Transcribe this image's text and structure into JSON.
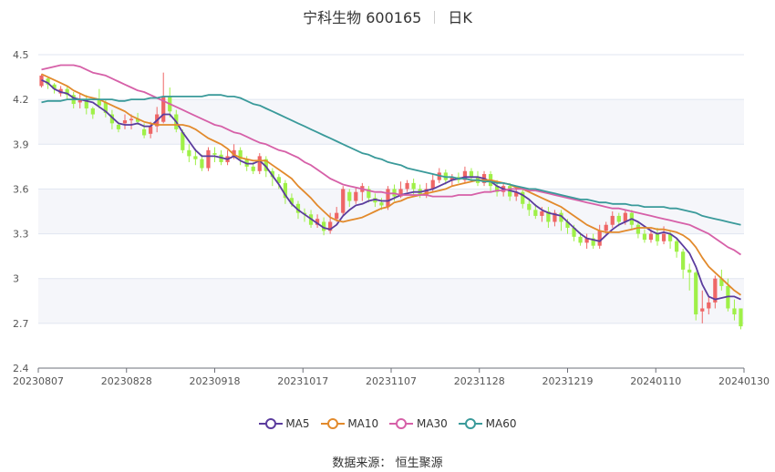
{
  "title": {
    "name": "宁科生物 600165",
    "period": "日K"
  },
  "source": {
    "label": "数据来源：",
    "value": "恒生聚源"
  },
  "chart_data": {
    "type": "candlestick",
    "y_ticks": [
      "4.5",
      "4.2",
      "3.9",
      "3.6",
      "3.3",
      "3",
      "2.7",
      "2.4"
    ],
    "y_values": [
      4.5,
      4.2,
      3.9,
      3.6,
      3.3,
      3.0,
      2.7,
      2.4
    ],
    "ylim": [
      2.4,
      4.5
    ],
    "x_ticks": [
      "20230807",
      "20230828",
      "20230918",
      "20231017",
      "20231107",
      "20231128",
      "20231219",
      "20240110",
      "20240130"
    ],
    "up_color": "#ee6666",
    "down_color": "#9ff048",
    "grid": true,
    "legend_position": "bottom",
    "series": [
      {
        "name": "MA5",
        "color": "#5b3c9e",
        "values": [
          4.33,
          4.31,
          4.27,
          4.25,
          4.24,
          4.21,
          4.2,
          4.19,
          4.18,
          4.15,
          4.12,
          4.08,
          4.04,
          4.03,
          4.03,
          4.04,
          4.02,
          4.02,
          4.06,
          4.1,
          4.1,
          4.05,
          3.98,
          3.92,
          3.86,
          3.82,
          3.82,
          3.82,
          3.81,
          3.8,
          3.82,
          3.79,
          3.77,
          3.77,
          3.79,
          3.75,
          3.69,
          3.63,
          3.56,
          3.5,
          3.46,
          3.43,
          3.4,
          3.37,
          3.34,
          3.33,
          3.36,
          3.42,
          3.46,
          3.49,
          3.5,
          3.52,
          3.53,
          3.52,
          3.52,
          3.54,
          3.56,
          3.57,
          3.58,
          3.58,
          3.59,
          3.6,
          3.62,
          3.64,
          3.66,
          3.67,
          3.68,
          3.68,
          3.68,
          3.67,
          3.65,
          3.62,
          3.6,
          3.59,
          3.58,
          3.56,
          3.53,
          3.49,
          3.46,
          3.44,
          3.43,
          3.42,
          3.38,
          3.34,
          3.3,
          3.27,
          3.26,
          3.25,
          3.29,
          3.33,
          3.36,
          3.38,
          3.4,
          3.38,
          3.35,
          3.32,
          3.3,
          3.31,
          3.3,
          3.27,
          3.22,
          3.17,
          3.08,
          2.96,
          2.88,
          2.86,
          2.87,
          2.88,
          2.88,
          2.86
        ]
      },
      {
        "name": "MA10",
        "color": "#e28a2c",
        "values": [
          4.37,
          4.35,
          4.33,
          4.31,
          4.29,
          4.26,
          4.24,
          4.22,
          4.21,
          4.2,
          4.18,
          4.16,
          4.14,
          4.12,
          4.09,
          4.07,
          4.05,
          4.04,
          4.03,
          4.03,
          4.03,
          4.03,
          4.03,
          4.02,
          4.0,
          3.97,
          3.94,
          3.92,
          3.9,
          3.87,
          3.83,
          3.81,
          3.8,
          3.79,
          3.79,
          3.79,
          3.76,
          3.73,
          3.7,
          3.67,
          3.62,
          3.58,
          3.54,
          3.49,
          3.45,
          3.41,
          3.39,
          3.38,
          3.39,
          3.4,
          3.41,
          3.43,
          3.45,
          3.47,
          3.48,
          3.51,
          3.52,
          3.54,
          3.55,
          3.56,
          3.57,
          3.58,
          3.59,
          3.6,
          3.62,
          3.63,
          3.64,
          3.65,
          3.66,
          3.66,
          3.66,
          3.65,
          3.64,
          3.63,
          3.61,
          3.6,
          3.58,
          3.56,
          3.54,
          3.52,
          3.5,
          3.48,
          3.45,
          3.42,
          3.39,
          3.36,
          3.34,
          3.32,
          3.31,
          3.31,
          3.31,
          3.32,
          3.33,
          3.34,
          3.34,
          3.34,
          3.33,
          3.33,
          3.32,
          3.31,
          3.29,
          3.26,
          3.21,
          3.14,
          3.08,
          3.04,
          3.0,
          2.96,
          2.92,
          2.89
        ]
      },
      {
        "name": "MA30",
        "color": "#d660a8",
        "values": [
          4.4,
          4.41,
          4.42,
          4.43,
          4.43,
          4.43,
          4.42,
          4.4,
          4.38,
          4.37,
          4.36,
          4.34,
          4.32,
          4.3,
          4.28,
          4.26,
          4.25,
          4.23,
          4.21,
          4.19,
          4.17,
          4.15,
          4.13,
          4.11,
          4.09,
          4.07,
          4.05,
          4.03,
          4.02,
          4.0,
          3.98,
          3.97,
          3.95,
          3.93,
          3.91,
          3.9,
          3.88,
          3.86,
          3.85,
          3.83,
          3.81,
          3.78,
          3.76,
          3.73,
          3.7,
          3.67,
          3.65,
          3.63,
          3.62,
          3.61,
          3.6,
          3.59,
          3.58,
          3.58,
          3.57,
          3.57,
          3.56,
          3.56,
          3.56,
          3.56,
          3.56,
          3.55,
          3.55,
          3.55,
          3.55,
          3.56,
          3.56,
          3.56,
          3.57,
          3.58,
          3.58,
          3.59,
          3.59,
          3.6,
          3.6,
          3.6,
          3.59,
          3.59,
          3.58,
          3.57,
          3.56,
          3.55,
          3.54,
          3.53,
          3.52,
          3.51,
          3.5,
          3.49,
          3.48,
          3.47,
          3.47,
          3.46,
          3.45,
          3.44,
          3.43,
          3.42,
          3.41,
          3.4,
          3.39,
          3.38,
          3.37,
          3.36,
          3.34,
          3.32,
          3.3,
          3.27,
          3.24,
          3.21,
          3.19,
          3.16
        ]
      },
      {
        "name": "MA60",
        "color": "#3a9a9a",
        "values": [
          4.18,
          4.19,
          4.19,
          4.19,
          4.2,
          4.2,
          4.2,
          4.2,
          4.2,
          4.2,
          4.2,
          4.2,
          4.19,
          4.19,
          4.2,
          4.2,
          4.2,
          4.21,
          4.21,
          4.22,
          4.22,
          4.22,
          4.22,
          4.22,
          4.22,
          4.22,
          4.23,
          4.23,
          4.23,
          4.22,
          4.22,
          4.21,
          4.19,
          4.17,
          4.16,
          4.14,
          4.12,
          4.1,
          4.08,
          4.06,
          4.04,
          4.02,
          4.0,
          3.98,
          3.96,
          3.94,
          3.92,
          3.9,
          3.88,
          3.86,
          3.84,
          3.83,
          3.81,
          3.8,
          3.78,
          3.77,
          3.76,
          3.74,
          3.73,
          3.72,
          3.71,
          3.7,
          3.69,
          3.68,
          3.68,
          3.67,
          3.67,
          3.66,
          3.66,
          3.65,
          3.65,
          3.64,
          3.64,
          3.63,
          3.62,
          3.61,
          3.6,
          3.6,
          3.59,
          3.58,
          3.57,
          3.56,
          3.55,
          3.54,
          3.53,
          3.53,
          3.52,
          3.51,
          3.51,
          3.5,
          3.5,
          3.5,
          3.49,
          3.49,
          3.48,
          3.48,
          3.48,
          3.48,
          3.47,
          3.47,
          3.46,
          3.45,
          3.44,
          3.42,
          3.41,
          3.4,
          3.39,
          3.38,
          3.37,
          3.36
        ]
      }
    ],
    "candles": [
      [
        4.29,
        4.36,
        4.37,
        4.28
      ],
      [
        4.34,
        4.3,
        4.35,
        4.27
      ],
      [
        4.3,
        4.27,
        4.31,
        4.24
      ],
      [
        4.24,
        4.27,
        4.29,
        4.22
      ],
      [
        4.27,
        4.23,
        4.29,
        4.2
      ],
      [
        4.23,
        4.17,
        4.25,
        4.14
      ],
      [
        4.18,
        4.2,
        4.24,
        4.14
      ],
      [
        4.2,
        4.14,
        4.23,
        4.1
      ],
      [
        4.14,
        4.1,
        4.15,
        4.07
      ],
      [
        4.2,
        4.16,
        4.27,
        4.14
      ],
      [
        4.18,
        4.11,
        4.2,
        4.08
      ],
      [
        4.1,
        4.04,
        4.13,
        4.0
      ],
      [
        4.03,
        4.0,
        4.05,
        3.98
      ],
      [
        4.04,
        4.06,
        4.1,
        4.0
      ],
      [
        4.06,
        4.07,
        4.1,
        4.0
      ],
      [
        4.07,
        4.05,
        4.11,
        4.03
      ],
      [
        4.0,
        3.96,
        4.04,
        3.94
      ],
      [
        3.97,
        4.02,
        4.05,
        3.94
      ],
      [
        4.02,
        4.1,
        4.15,
        3.98
      ],
      [
        4.05,
        4.22,
        4.38,
        4.04
      ],
      [
        4.22,
        4.12,
        4.28,
        4.08
      ],
      [
        4.1,
        4.0,
        4.13,
        3.98
      ],
      [
        3.98,
        3.86,
        4.0,
        3.84
      ],
      [
        3.86,
        3.82,
        3.9,
        3.78
      ],
      [
        3.82,
        3.8,
        3.87,
        3.76
      ],
      [
        3.8,
        3.74,
        3.83,
        3.72
      ],
      [
        3.74,
        3.86,
        3.88,
        3.72
      ],
      [
        3.84,
        3.83,
        3.88,
        3.78
      ],
      [
        3.83,
        3.78,
        3.86,
        3.76
      ],
      [
        3.78,
        3.82,
        3.86,
        3.76
      ],
      [
        3.82,
        3.86,
        3.9,
        3.8
      ],
      [
        3.86,
        3.8,
        3.88,
        3.76
      ],
      [
        3.8,
        3.75,
        3.82,
        3.72
      ],
      [
        3.75,
        3.72,
        3.78,
        3.7
      ],
      [
        3.72,
        3.82,
        3.84,
        3.7
      ],
      [
        3.8,
        3.72,
        3.82,
        3.68
      ],
      [
        3.72,
        3.68,
        3.74,
        3.62
      ],
      [
        3.68,
        3.64,
        3.7,
        3.6
      ],
      [
        3.64,
        3.54,
        3.66,
        3.5
      ],
      [
        3.54,
        3.5,
        3.57,
        3.48
      ],
      [
        3.5,
        3.44,
        3.52,
        3.4
      ],
      [
        3.44,
        3.43,
        3.47,
        3.38
      ],
      [
        3.43,
        3.36,
        3.46,
        3.34
      ],
      [
        3.36,
        3.4,
        3.43,
        3.34
      ],
      [
        3.38,
        3.32,
        3.41,
        3.29
      ],
      [
        3.32,
        3.38,
        3.44,
        3.3
      ],
      [
        3.4,
        3.44,
        3.48,
        3.38
      ],
      [
        3.44,
        3.6,
        3.62,
        3.42
      ],
      [
        3.58,
        3.52,
        3.6,
        3.48
      ],
      [
        3.52,
        3.58,
        3.61,
        3.5
      ],
      [
        3.58,
        3.62,
        3.64,
        3.52
      ],
      [
        3.6,
        3.54,
        3.62,
        3.51
      ],
      [
        3.54,
        3.51,
        3.57,
        3.48
      ],
      [
        3.51,
        3.49,
        3.54,
        3.46
      ],
      [
        3.48,
        3.6,
        3.62,
        3.46
      ],
      [
        3.6,
        3.55,
        3.63,
        3.52
      ],
      [
        3.55,
        3.6,
        3.65,
        3.54
      ],
      [
        3.6,
        3.64,
        3.66,
        3.58
      ],
      [
        3.64,
        3.6,
        3.67,
        3.56
      ],
      [
        3.6,
        3.56,
        3.63,
        3.54
      ],
      [
        3.56,
        3.6,
        3.64,
        3.54
      ],
      [
        3.6,
        3.66,
        3.7,
        3.58
      ],
      [
        3.66,
        3.71,
        3.74,
        3.64
      ],
      [
        3.71,
        3.66,
        3.73,
        3.63
      ],
      [
        3.66,
        3.68,
        3.7,
        3.62
      ],
      [
        3.68,
        3.66,
        3.71,
        3.64
      ],
      [
        3.66,
        3.72,
        3.75,
        3.64
      ],
      [
        3.72,
        3.68,
        3.74,
        3.66
      ],
      [
        3.68,
        3.64,
        3.72,
        3.62
      ],
      [
        3.64,
        3.7,
        3.72,
        3.62
      ],
      [
        3.7,
        3.62,
        3.72,
        3.58
      ],
      [
        3.62,
        3.58,
        3.66,
        3.55
      ],
      [
        3.58,
        3.62,
        3.64,
        3.55
      ],
      [
        3.62,
        3.55,
        3.64,
        3.52
      ],
      [
        3.55,
        3.58,
        3.6,
        3.52
      ],
      [
        3.58,
        3.5,
        3.6,
        3.47
      ],
      [
        3.5,
        3.46,
        3.53,
        3.42
      ],
      [
        3.46,
        3.42,
        3.5,
        3.4
      ],
      [
        3.42,
        3.45,
        3.48,
        3.38
      ],
      [
        3.45,
        3.38,
        3.48,
        3.34
      ],
      [
        3.38,
        3.44,
        3.46,
        3.35
      ],
      [
        3.44,
        3.38,
        3.46,
        3.32
      ],
      [
        3.38,
        3.34,
        3.4,
        3.3
      ],
      [
        3.34,
        3.28,
        3.36,
        3.25
      ],
      [
        3.28,
        3.24,
        3.31,
        3.22
      ],
      [
        3.24,
        3.27,
        3.3,
        3.2
      ],
      [
        3.27,
        3.22,
        3.3,
        3.2
      ],
      [
        3.22,
        3.32,
        3.36,
        3.2
      ],
      [
        3.32,
        3.36,
        3.38,
        3.3
      ],
      [
        3.36,
        3.42,
        3.45,
        3.34
      ],
      [
        3.42,
        3.38,
        3.44,
        3.35
      ],
      [
        3.38,
        3.44,
        3.46,
        3.36
      ],
      [
        3.44,
        3.36,
        3.46,
        3.33
      ],
      [
        3.36,
        3.3,
        3.38,
        3.27
      ],
      [
        3.3,
        3.26,
        3.33,
        3.24
      ],
      [
        3.26,
        3.3,
        3.33,
        3.24
      ],
      [
        3.3,
        3.25,
        3.34,
        3.22
      ],
      [
        3.25,
        3.3,
        3.35,
        3.23
      ],
      [
        3.3,
        3.25,
        3.32,
        3.2
      ],
      [
        3.25,
        3.18,
        3.27,
        3.14
      ],
      [
        3.18,
        3.06,
        3.2,
        3.0
      ],
      [
        3.06,
        3.04,
        3.1,
        2.92
      ],
      [
        3.04,
        2.76,
        3.05,
        2.72
      ],
      [
        2.78,
        2.8,
        2.92,
        2.7
      ],
      [
        2.8,
        2.84,
        2.88,
        2.76
      ],
      [
        2.84,
        3.0,
        3.02,
        2.8
      ],
      [
        3.0,
        2.95,
        3.06,
        2.92
      ],
      [
        2.95,
        2.8,
        3.0,
        2.78
      ],
      [
        2.8,
        2.76,
        2.86,
        2.72
      ],
      [
        2.8,
        2.68,
        2.8,
        2.66
      ]
    ]
  }
}
